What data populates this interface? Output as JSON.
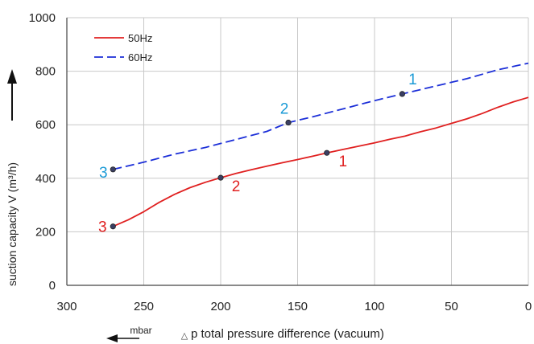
{
  "chart_data": {
    "type": "line",
    "title": "",
    "xlabel": "p total pressure difference (vacuum)",
    "xlabel_symbol": "△",
    "xunit": "mbar",
    "ylabel": "suction capacity V (m³/h)",
    "xlim": [
      300,
      0
    ],
    "ylim": [
      0,
      1000
    ],
    "x_reversed": true,
    "x_ticks": [
      300,
      250,
      200,
      150,
      100,
      50,
      0
    ],
    "y_ticks": [
      0,
      200,
      400,
      600,
      800,
      1000
    ],
    "grid": true,
    "legend_position": "top-left",
    "series": [
      {
        "name": "50Hz",
        "color": "#e02020",
        "style": "solid",
        "x": [
          270,
          260,
          250,
          240,
          230,
          220,
          210,
          200,
          190,
          180,
          170,
          160,
          150,
          140,
          131,
          120,
          110,
          100,
          90,
          80,
          70,
          60,
          50,
          40,
          30,
          20,
          10,
          0
        ],
        "y": [
          220,
          245,
          275,
          310,
          340,
          365,
          385,
          402,
          418,
          432,
          445,
          458,
          470,
          483,
          495,
          508,
          520,
          532,
          546,
          558,
          574,
          588,
          605,
          622,
          642,
          665,
          685,
          702
        ]
      },
      {
        "name": "60Hz",
        "color": "#1c2fd8",
        "style": "dashed",
        "x": [
          270,
          250,
          230,
          210,
          190,
          170,
          156,
          140,
          120,
          100,
          82,
          60,
          40,
          20,
          0
        ],
        "y": [
          433,
          460,
          490,
          515,
          545,
          575,
          608,
          630,
          660,
          690,
          715,
          745,
          772,
          805,
          830
        ]
      }
    ],
    "marked_points": [
      {
        "series": "50Hz",
        "x": 131,
        "y": 495,
        "label": "1",
        "color": "#e02020"
      },
      {
        "series": "50Hz",
        "x": 200,
        "y": 402,
        "label": "2",
        "color": "#e02020"
      },
      {
        "series": "50Hz",
        "x": 270,
        "y": 220,
        "label": "3",
        "color": "#e02020"
      },
      {
        "series": "60Hz",
        "x": 82,
        "y": 715,
        "label": "1",
        "color": "#1a9ad6"
      },
      {
        "series": "60Hz",
        "x": 156,
        "y": 608,
        "label": "2",
        "color": "#1a9ad6"
      },
      {
        "series": "60Hz",
        "x": 270,
        "y": 433,
        "label": "3",
        "color": "#1a9ad6"
      }
    ]
  }
}
